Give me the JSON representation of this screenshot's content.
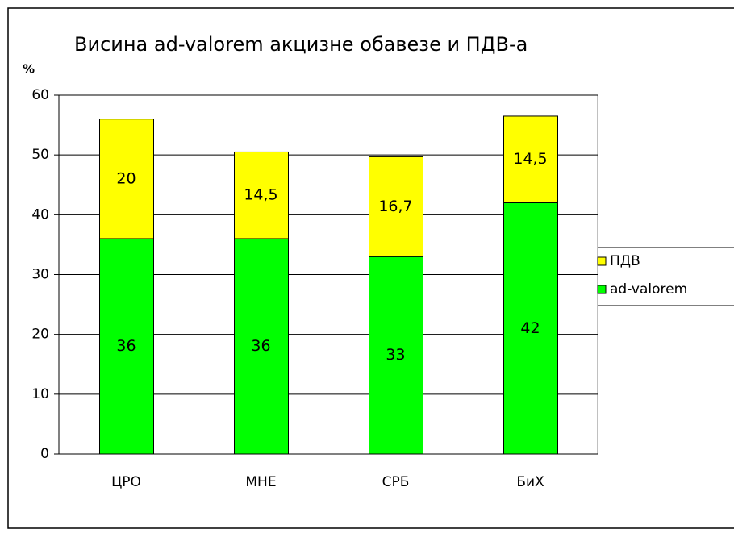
{
  "chart_data": {
    "type": "bar",
    "stacked": true,
    "title": "Висина ad-valorem акцизне обавезе и ПДВ-а",
    "y_label": "%",
    "categories": [
      "ЦРО",
      "МНЕ",
      "СРБ",
      "БиХ"
    ],
    "series": [
      {
        "name": "ad-valorem",
        "color": "#00ff00",
        "values": [
          36,
          36,
          33,
          42
        ]
      },
      {
        "name": "ПДВ",
        "color": "#ffff00",
        "values": [
          20,
          14.5,
          16.7,
          14.5
        ],
        "value_labels": [
          "20",
          "14,5",
          "16,7",
          "14,5"
        ]
      }
    ],
    "ylim": [
      0,
      60
    ],
    "yticks": [
      0,
      10,
      20,
      30,
      40,
      50,
      60
    ],
    "grid": true,
    "legend": "right"
  }
}
